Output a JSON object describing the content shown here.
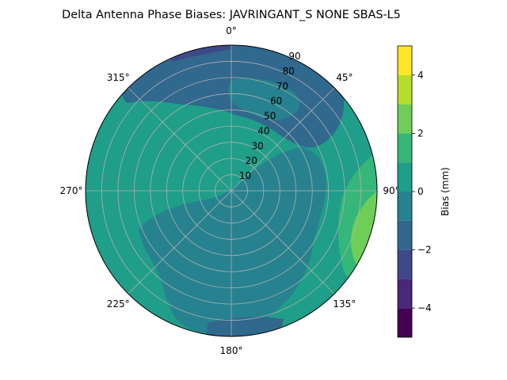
{
  "chart_data": {
    "type": "heatmap",
    "projection": "polar",
    "title": "Delta Antenna Phase Biases: JAVRINGANT_S    NONE SBAS-L5",
    "angle_ticks": [
      "0°",
      "45°",
      "90°",
      "135°",
      "180°",
      "225°",
      "270°",
      "315°"
    ],
    "radial_ticks": [
      "10",
      "20",
      "30",
      "40",
      "50",
      "60",
      "70",
      "80",
      "90"
    ],
    "radial_range": [
      0,
      90
    ],
    "theta_direction": "clockwise",
    "theta_zero": "north",
    "grid": true,
    "colorbar": {
      "label": "Bias (mm)",
      "range": [
        -5,
        5
      ],
      "ticks": [
        "−4",
        "−2",
        "0",
        "2",
        "4"
      ],
      "levels": [
        -5,
        -4,
        -3,
        -2,
        -1,
        0,
        1,
        2,
        3,
        4,
        5
      ],
      "colors": [
        "#440154",
        "#482878",
        "#3e4989",
        "#31688e",
        "#26828e",
        "#1f9e89",
        "#35b779",
        "#6ece58",
        "#b5de2b",
        "#fde725"
      ]
    },
    "regions": [
      {
        "name": "base",
        "value": 0.5,
        "color": "#1f9e89"
      },
      {
        "name": "north-rim",
        "value": -1.5,
        "color": "#31688e"
      },
      {
        "name": "north-rim-dark",
        "value": -2.5,
        "color": "#3e4989"
      },
      {
        "name": "north-inner",
        "value": -0.5,
        "color": "#26828e"
      },
      {
        "name": "south-band",
        "value": -0.5,
        "color": "#26828e"
      },
      {
        "name": "south-rim",
        "value": -1.5,
        "color": "#31688e"
      },
      {
        "name": "east-band",
        "value": 1.5,
        "color": "#35b779"
      },
      {
        "name": "east-rim",
        "value": 2.5,
        "color": "#6ece58"
      }
    ]
  }
}
